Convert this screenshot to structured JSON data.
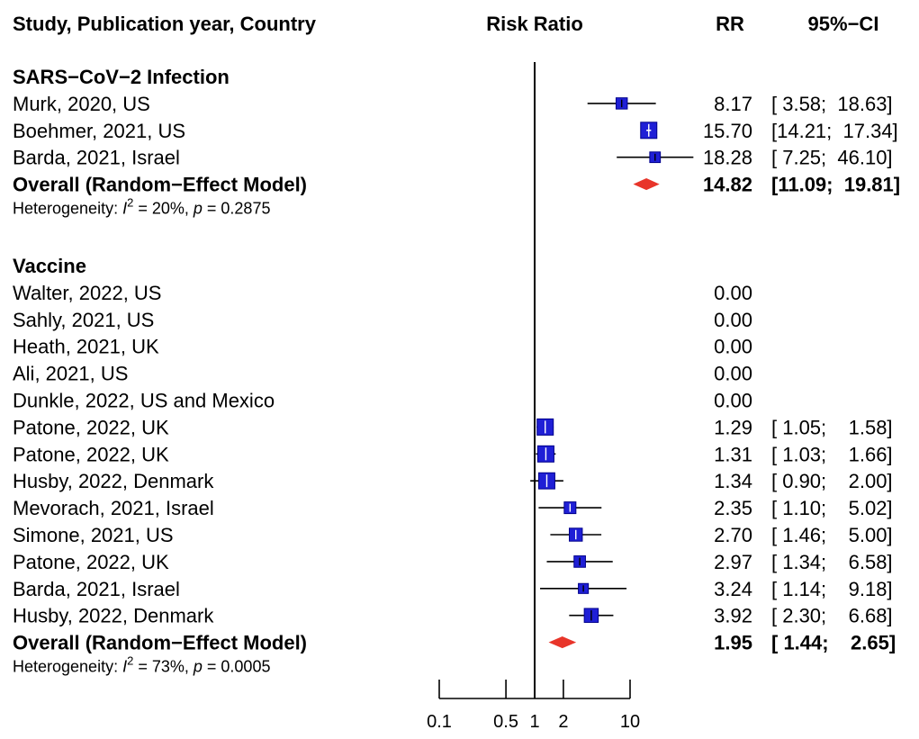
{
  "header": {
    "study": "Study, Publication year, Country",
    "effect": "Risk Ratio",
    "rr": "RR",
    "ci": "95%−CI"
  },
  "chart_data": {
    "type": "forest",
    "x_scale": "log",
    "x_ticks": [
      {
        "value": 0.1,
        "label": "0.1"
      },
      {
        "value": 0.5,
        "label": "0.5"
      },
      {
        "value": 1,
        "label": "1"
      },
      {
        "value": 2,
        "label": "2"
      },
      {
        "value": 10,
        "label": "10"
      }
    ],
    "reference_line": 1,
    "groups": [
      {
        "title": "SARS−CoV−2 Infection",
        "studies": [
          {
            "label": "Murk, 2020, US",
            "rr": 8.17,
            "lo": 3.58,
            "hi": 18.63,
            "rr_text": "8.17",
            "ci_text": "[ 3.58;  18.63]"
          },
          {
            "label": "Boehmer, 2021, US",
            "rr": 15.7,
            "lo": 14.21,
            "hi": 17.34,
            "rr_text": "15.70",
            "ci_text": "[14.21;  17.34]"
          },
          {
            "label": "Barda, 2021, Israel",
            "rr": 18.28,
            "lo": 7.25,
            "hi": 46.1,
            "rr_text": "18.28",
            "ci_text": "[ 7.25;  46.10]"
          }
        ],
        "overall": {
          "label": "Overall (Random−Effect Model)",
          "rr": 14.82,
          "lo": 11.09,
          "hi": 19.81,
          "rr_text": "14.82",
          "ci_text": "[11.09;  19.81]"
        },
        "heterogeneity": {
          "prefix": "Heterogeneity: ",
          "i2_label": "I",
          "i2_sup": "2",
          "i2_value": " = 20%, ",
          "p_label": "p",
          "p_value": " = 0.2875"
        }
      },
      {
        "title": "Vaccine",
        "studies": [
          {
            "label": "Walter, 2022, US",
            "rr": null,
            "rr_text": "0.00",
            "ci_text": ""
          },
          {
            "label": "Sahly, 2021, US",
            "rr": null,
            "rr_text": "0.00",
            "ci_text": ""
          },
          {
            "label": "Heath, 2021, UK",
            "rr": null,
            "rr_text": "0.00",
            "ci_text": ""
          },
          {
            "label": "Ali, 2021, US",
            "rr": null,
            "rr_text": "0.00",
            "ci_text": ""
          },
          {
            "label": "Dunkle, 2022, US and Mexico",
            "rr": null,
            "rr_text": "0.00",
            "ci_text": ""
          },
          {
            "label": "Patone, 2022, UK",
            "rr": 1.29,
            "lo": 1.05,
            "hi": 1.58,
            "rr_text": "1.29",
            "ci_text": "[ 1.05;    1.58]"
          },
          {
            "label": "Patone, 2022, UK",
            "rr": 1.31,
            "lo": 1.03,
            "hi": 1.66,
            "rr_text": "1.31",
            "ci_text": "[ 1.03;    1.66]"
          },
          {
            "label": "Husby, 2022, Denmark",
            "rr": 1.34,
            "lo": 0.9,
            "hi": 2.0,
            "rr_text": "1.34",
            "ci_text": "[ 0.90;    2.00]"
          },
          {
            "label": "Mevorach, 2021, Israel",
            "rr": 2.35,
            "lo": 1.1,
            "hi": 5.02,
            "rr_text": "2.35",
            "ci_text": "[ 1.10;    5.02]"
          },
          {
            "label": "Simone, 2021, US",
            "rr": 2.7,
            "lo": 1.46,
            "hi": 5.0,
            "rr_text": "2.70",
            "ci_text": "[ 1.46;    5.00]"
          },
          {
            "label": "Patone, 2022, UK",
            "rr": 2.97,
            "lo": 1.34,
            "hi": 6.58,
            "rr_text": "2.97",
            "ci_text": "[ 1.34;    6.58]"
          },
          {
            "label": "Barda, 2021, Israel",
            "rr": 3.24,
            "lo": 1.14,
            "hi": 9.18,
            "rr_text": "3.24",
            "ci_text": "[ 1.14;    9.18]"
          },
          {
            "label": "Husby, 2022, Denmark",
            "rr": 3.92,
            "lo": 2.3,
            "hi": 6.68,
            "rr_text": "3.92",
            "ci_text": "[ 2.30;    6.68]"
          }
        ],
        "overall": {
          "label": "Overall (Random−Effect Model)",
          "rr": 1.95,
          "lo": 1.44,
          "hi": 2.65,
          "rr_text": "1.95",
          "ci_text": "[ 1.44;    2.65]"
        },
        "heterogeneity": {
          "prefix": "Heterogeneity: ",
          "i2_label": "I",
          "i2_sup": "2",
          "i2_value": " = 73%, ",
          "p_label": "p",
          "p_value": " = 0.0005"
        }
      }
    ]
  },
  "colors": {
    "box_fill": "#1f1fd6",
    "box_stroke": "#00008b",
    "diamond": "#e8352a",
    "ink": "#000000"
  }
}
